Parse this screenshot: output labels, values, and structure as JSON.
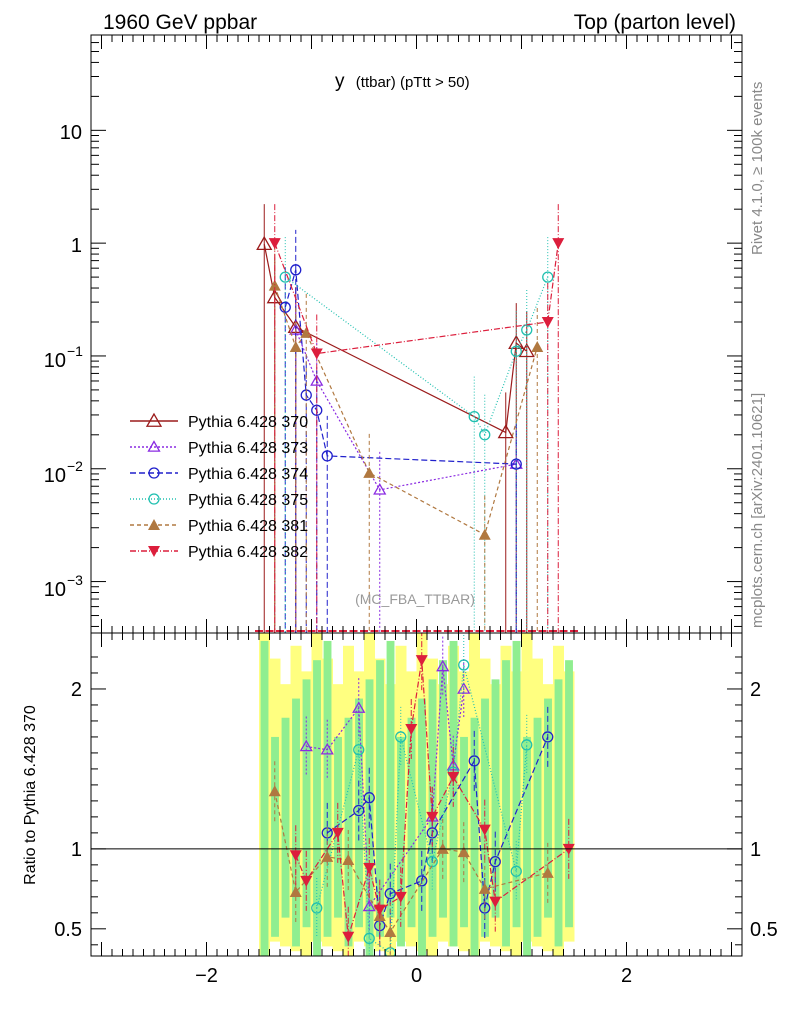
{
  "header": {
    "left": "1960 GeV ppbar",
    "right": "Top (parton level)"
  },
  "side_labels": {
    "top": "Rivet 4.1.0, ≥ 100k events",
    "bottom": "mcplots.cern.ch [arXiv:2401.10621]"
  },
  "watermark": "(MC_FBA_TTBAR)",
  "colors": {
    "green_band": "#90ee90",
    "yellow_band": "#ffff80",
    "grey": "#888888"
  },
  "chart_data": [
    {
      "type": "scatter",
      "panel": "main",
      "title_main": "y",
      "title_sub": "(ttbar) (pTtt > 50)",
      "xlabel": "",
      "ylabel": "",
      "y_scale": "log",
      "ylim": [
        0.00035,
        70
      ],
      "xlim": [
        -3.1,
        3.1
      ],
      "y_tick_labels": {
        "t10": "10",
        "t1": "1",
        "t01_base": "10",
        "t01_exp": "−1",
        "t001_base": "10",
        "t001_exp": "−2",
        "t0001_base": "10",
        "t0001_exp": "−3"
      },
      "legend_position": "center-left",
      "series": [
        {
          "name": "Pythia 6.428 370",
          "color": "#9b1b1b",
          "marker": "triangle-open",
          "dash": "",
          "points": [
            [
              -1.45,
              0.98
            ],
            [
              -1.35,
              0.33
            ],
            [
              -1.15,
              0.18
            ],
            [
              0.85,
              0.021
            ],
            [
              0.95,
              0.13
            ],
            [
              1.05,
              0.11
            ]
          ]
        },
        {
          "name": "Pythia 6.428 373",
          "color": "#8a2be2",
          "marker": "triangle-open-small",
          "dash": "2,2",
          "points": [
            [
              -1.15,
              0.17
            ],
            [
              -0.95,
              0.06
            ],
            [
              -0.35,
              0.0065
            ],
            [
              0.95,
              0.011
            ]
          ]
        },
        {
          "name": "Pythia 6.428 374",
          "color": "#2020cc",
          "marker": "circle-open",
          "dash": "6,3",
          "points": [
            [
              -1.25,
              0.27
            ],
            [
              -1.15,
              0.58
            ],
            [
              -1.05,
              0.045
            ],
            [
              -0.95,
              0.033
            ],
            [
              -0.85,
              0.013
            ],
            [
              0.95,
              0.011
            ]
          ]
        },
        {
          "name": "Pythia 6.428 375",
          "color": "#20c0b0",
          "marker": "circle-open",
          "dash": "1,2",
          "points": [
            [
              -1.25,
              0.5
            ],
            [
              0.55,
              0.029
            ],
            [
              0.65,
              0.02
            ],
            [
              0.95,
              0.11
            ],
            [
              1.05,
              0.17
            ],
            [
              1.25,
              0.5
            ]
          ]
        },
        {
          "name": "Pythia 6.428 381",
          "color": "#b07840",
          "marker": "triangle-up-filled",
          "dash": "4,3",
          "points": [
            [
              -1.35,
              0.42
            ],
            [
              -1.15,
              0.12
            ],
            [
              -1.05,
              0.16
            ],
            [
              -0.45,
              0.0092
            ],
            [
              0.65,
              0.0026
            ],
            [
              1.15,
              0.12
            ]
          ]
        },
        {
          "name": "Pythia 6.428 382",
          "color": "#dc1e3c",
          "marker": "triangle-down-filled",
          "dash": "6,2,1,2",
          "points": [
            [
              -1.35,
              1.0
            ],
            [
              -0.95,
              0.105
            ],
            [
              1.25,
              0.2
            ],
            [
              1.35,
              1.0
            ]
          ]
        }
      ]
    },
    {
      "type": "scatter",
      "panel": "ratio",
      "ylabel": "Ratio to Pythia 6.428 370",
      "xlim": [
        -3.1,
        3.1
      ],
      "ylim": [
        0.33,
        2.35
      ],
      "y_ticks": [
        0.5,
        1,
        2
      ],
      "y_tick_labels": [
        "0.5",
        "1",
        "2"
      ],
      "x_ticks": [
        -2,
        0,
        2
      ],
      "x_tick_labels": [
        "−2",
        "0",
        "2"
      ],
      "reference_line": 1,
      "bands": [
        [
          -1.5,
          1.5
        ]
      ],
      "series": [
        {
          "name": "Pythia 6.428 373",
          "points": [
            [
              -1.05,
              1.64
            ],
            [
              -0.85,
              1.62
            ],
            [
              -0.55,
              1.88
            ],
            [
              -0.45,
              0.64
            ],
            [
              0.15,
              1.2
            ],
            [
              0.25,
              2.14
            ],
            [
              0.35,
              1.52
            ],
            [
              0.45,
              2.0
            ]
          ]
        },
        {
          "name": "Pythia 6.428 374",
          "points": [
            [
              -0.85,
              1.1
            ],
            [
              -0.55,
              1.24
            ],
            [
              -0.45,
              1.32
            ],
            [
              -0.35,
              0.52
            ],
            [
              -0.25,
              0.72
            ],
            [
              0.05,
              0.8
            ],
            [
              0.15,
              1.1
            ],
            [
              0.55,
              1.55
            ],
            [
              0.65,
              0.63
            ],
            [
              0.75,
              0.92
            ],
            [
              1.25,
              1.7
            ]
          ]
        },
        {
          "name": "Pythia 6.428 375",
          "points": [
            [
              -0.95,
              0.63
            ],
            [
              -0.55,
              1.62
            ],
            [
              -0.45,
              0.44
            ],
            [
              -0.25,
              0.35
            ],
            [
              -0.15,
              1.7
            ],
            [
              0.15,
              0.92
            ],
            [
              0.35,
              1.48
            ],
            [
              0.45,
              2.15
            ],
            [
              0.95,
              0.86
            ],
            [
              1.05,
              1.65
            ]
          ]
        },
        {
          "name": "Pythia 6.428 381",
          "points": [
            [
              -1.35,
              1.36
            ],
            [
              -1.15,
              0.73
            ],
            [
              -0.85,
              0.95
            ],
            [
              -0.65,
              0.93
            ],
            [
              -0.35,
              0.58
            ],
            [
              -0.25,
              0.48
            ],
            [
              0.25,
              1.0
            ],
            [
              0.45,
              0.98
            ],
            [
              0.65,
              0.75
            ],
            [
              1.25,
              0.85
            ]
          ]
        },
        {
          "name": "Pythia 6.428 382",
          "points": [
            [
              -1.15,
              0.96
            ],
            [
              -1.05,
              0.8
            ],
            [
              -0.75,
              1.1
            ],
            [
              -0.65,
              0.45
            ],
            [
              -0.45,
              0.88
            ],
            [
              -0.35,
              0.62
            ],
            [
              -0.15,
              0.7
            ],
            [
              -0.05,
              1.75
            ],
            [
              0.05,
              2.18
            ],
            [
              0.15,
              1.2
            ],
            [
              0.35,
              1.45
            ],
            [
              0.65,
              1.12
            ],
            [
              0.75,
              0.67
            ],
            [
              1.45,
              1.0
            ]
          ]
        }
      ]
    }
  ]
}
